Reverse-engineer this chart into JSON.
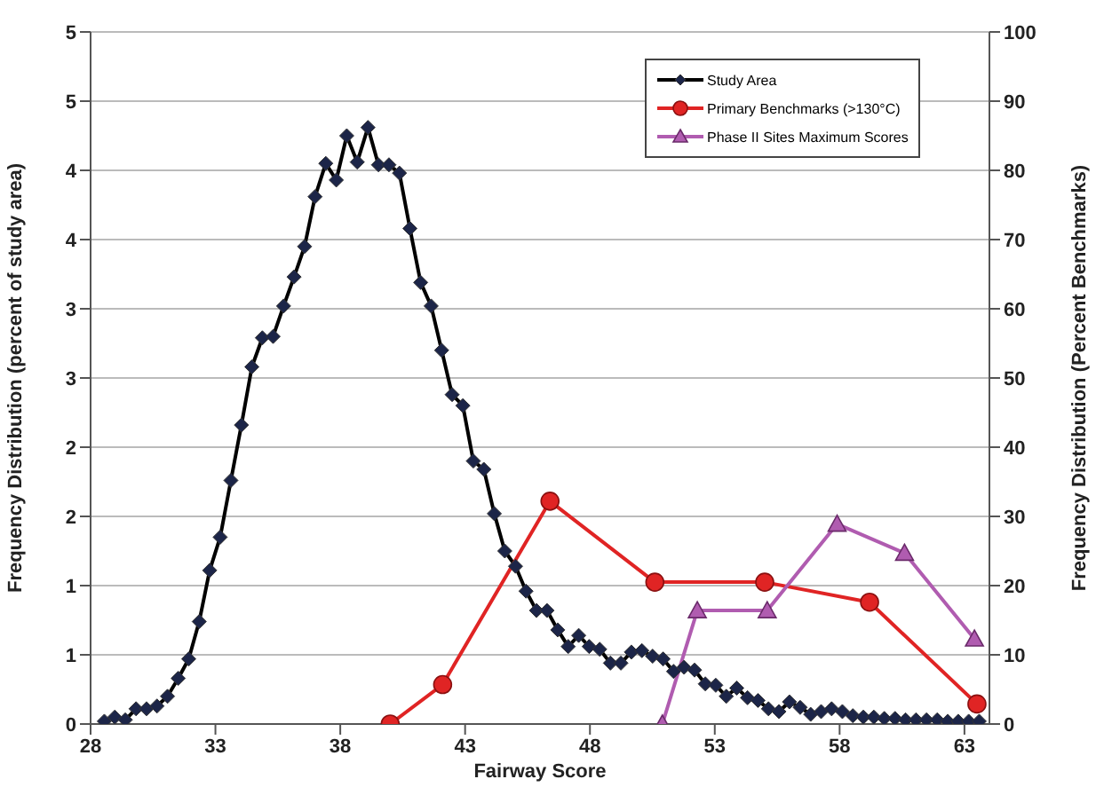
{
  "chart_data": {
    "type": "line",
    "xlabel": "Fairway Score",
    "ylabel": "Frequency Distribution (percent of study area)",
    "y2label": "Frequency Distribution (Percent Benchmarks)",
    "xlim": [
      28,
      64
    ],
    "xticks": [
      28,
      33,
      38,
      43,
      48,
      53,
      58,
      63
    ],
    "ylim": [
      0,
      5
    ],
    "yticks": [
      0,
      {
        "value": 0.5,
        "label": "1"
      },
      1,
      {
        "value": 1.5,
        "label": "2"
      },
      2,
      {
        "value": 2.5,
        "label": "3"
      },
      3,
      {
        "value": 3.5,
        "label": "4"
      },
      4,
      {
        "value": 4.5,
        "label": "5"
      },
      5
    ],
    "y2lim": [
      0,
      100
    ],
    "y2ticks": [
      0,
      10,
      20,
      30,
      40,
      50,
      60,
      70,
      80,
      90,
      100
    ],
    "grid": "y",
    "legend": "top right",
    "series": [
      {
        "name": "Study Area",
        "color": "#1c2548",
        "marker": "diamond",
        "x": [
          28.55,
          28.97,
          29.39,
          29.82,
          30.24,
          30.66,
          31.08,
          31.51,
          31.93,
          32.35,
          32.77,
          33.19,
          33.62,
          34.04,
          34.46,
          34.88,
          35.31,
          35.73,
          36.15,
          36.57,
          36.99,
          37.42,
          37.84,
          38.26,
          38.68,
          39.11,
          39.53,
          39.95,
          40.37,
          40.79,
          41.22,
          41.64,
          42.06,
          42.48,
          42.91,
          43.33,
          43.75,
          44.17,
          44.59,
          45.02,
          45.44,
          45.86,
          46.28,
          46.71,
          47.13,
          47.55,
          47.97,
          48.39,
          48.82,
          49.24,
          49.66,
          50.08,
          50.51,
          50.93,
          51.35,
          51.77,
          52.19,
          52.62,
          53.04,
          53.46,
          53.88,
          54.31,
          54.73,
          55.15,
          55.57,
          55.99,
          56.42,
          56.84,
          57.26,
          57.68,
          58.11,
          58.53,
          58.95,
          59.37,
          59.79,
          60.22,
          60.64,
          61.06,
          61.48,
          61.91,
          62.33,
          62.75,
          63.17,
          63.59
        ],
        "values": [
          0.02,
          0.05,
          0.03,
          0.11,
          0.11,
          0.13,
          0.2,
          0.33,
          0.47,
          0.74,
          1.11,
          1.35,
          1.76,
          2.16,
          2.58,
          2.79,
          2.8,
          3.02,
          3.23,
          3.45,
          3.81,
          4.05,
          3.93,
          4.25,
          4.06,
          4.31,
          4.04,
          4.04,
          3.98,
          3.58,
          3.19,
          3.02,
          2.7,
          2.38,
          2.3,
          1.9,
          1.84,
          1.52,
          1.25,
          1.14,
          0.96,
          0.82,
          0.82,
          0.68,
          0.56,
          0.64,
          0.56,
          0.54,
          0.44,
          0.44,
          0.52,
          0.53,
          0.49,
          0.47,
          0.38,
          0.41,
          0.39,
          0.29,
          0.28,
          0.2,
          0.26,
          0.19,
          0.17,
          0.11,
          0.09,
          0.16,
          0.12,
          0.07,
          0.09,
          0.11,
          0.09,
          0.06,
          0.05,
          0.05,
          0.04,
          0.04,
          0.03,
          0.03,
          0.03,
          0.03,
          0.02,
          0.02,
          0.02,
          0.02
        ]
      },
      {
        "name": "Primary Benchmarks (>130°C)",
        "color": "#e02424",
        "marker": "circle",
        "axis": "y2",
        "x": [
          40,
          42.1,
          46.4,
          50.6,
          55,
          59.2,
          63.5
        ],
        "values": [
          0,
          5.7,
          32.2,
          20.5,
          20.5,
          17.6,
          2.9
        ]
      },
      {
        "name": "Phase II Sites Maximum Scores",
        "color": "#b05cb0",
        "marker": "triangle",
        "axis": "y2",
        "x": [
          50.9,
          52.3,
          55.1,
          57.9,
          60.6,
          63.4
        ],
        "values": [
          0,
          16.4,
          16.4,
          28.9,
          24.7,
          12.3
        ]
      }
    ]
  }
}
